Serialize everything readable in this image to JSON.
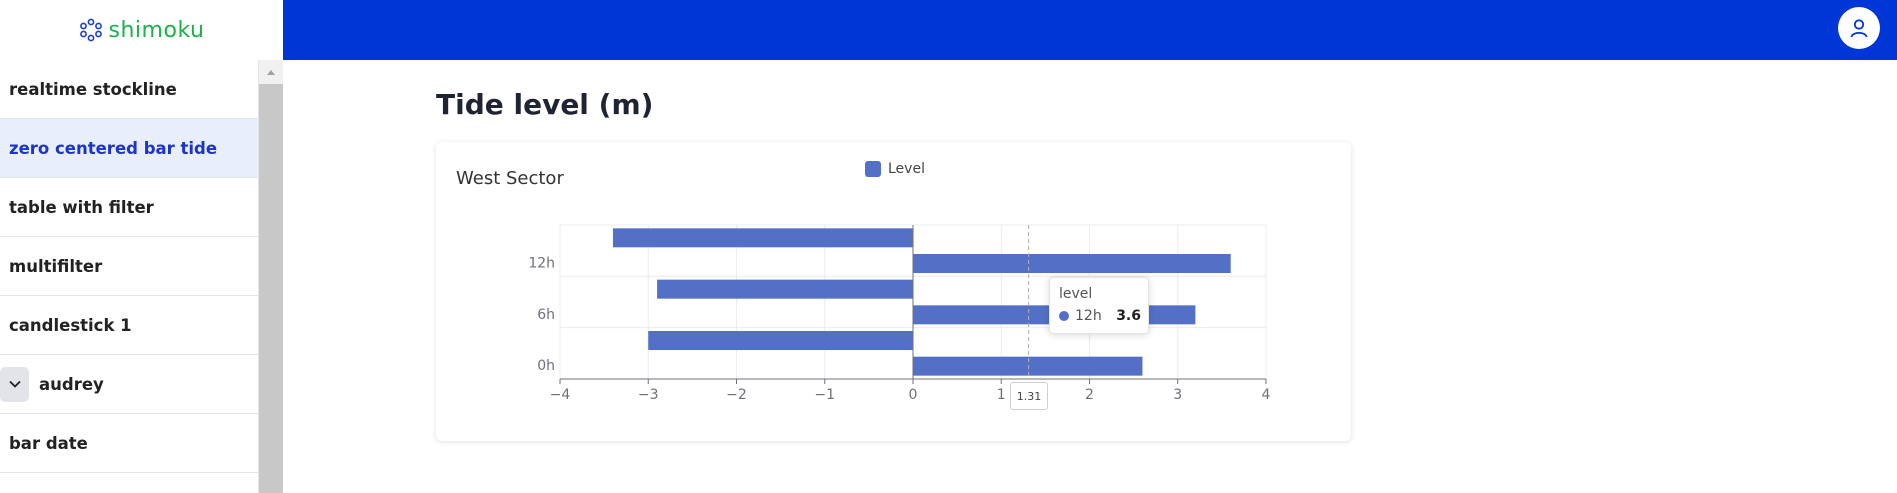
{
  "app": {
    "logo_text": "shimoku"
  },
  "sidebar": {
    "items": [
      {
        "label": "realtime stockline",
        "active": false
      },
      {
        "label": "zero centered bar tide",
        "active": true
      },
      {
        "label": "table with filter",
        "active": false
      },
      {
        "label": "multifilter",
        "active": false
      },
      {
        "label": "candlestick 1",
        "active": false
      },
      {
        "label": "audrey",
        "active": false,
        "expandable": true
      },
      {
        "label": "bar date",
        "active": false
      }
    ]
  },
  "header": {
    "avatar_icon": "user-icon",
    "bar_color": "#0035d6"
  },
  "page": {
    "title": "Tide level (m)"
  },
  "card": {
    "title": "West Sector"
  },
  "tooltip": {
    "title": "level",
    "series": "12h",
    "value": "3.6"
  },
  "axis_pointer": {
    "value": "1.31"
  },
  "chart_data": {
    "type": "bar",
    "orientation": "horizontal",
    "title": "West Sector",
    "legend": [
      "Level"
    ],
    "legend_position": "top-center",
    "color": "#5470c6",
    "categories": [
      "0h",
      "",
      "6h",
      "",
      "12h",
      ""
    ],
    "series": [
      {
        "name": "Level",
        "values": [
          2.6,
          -3.0,
          3.2,
          -2.9,
          3.6,
          -3.4
        ]
      }
    ],
    "xlim": [
      -4,
      4
    ],
    "xticks": [
      "-4",
      "-3",
      "-2",
      "-1",
      "0",
      "1",
      "2",
      "3",
      "4"
    ],
    "ytick_labels": [
      "0h",
      "6h",
      "12h"
    ],
    "grid": true
  }
}
